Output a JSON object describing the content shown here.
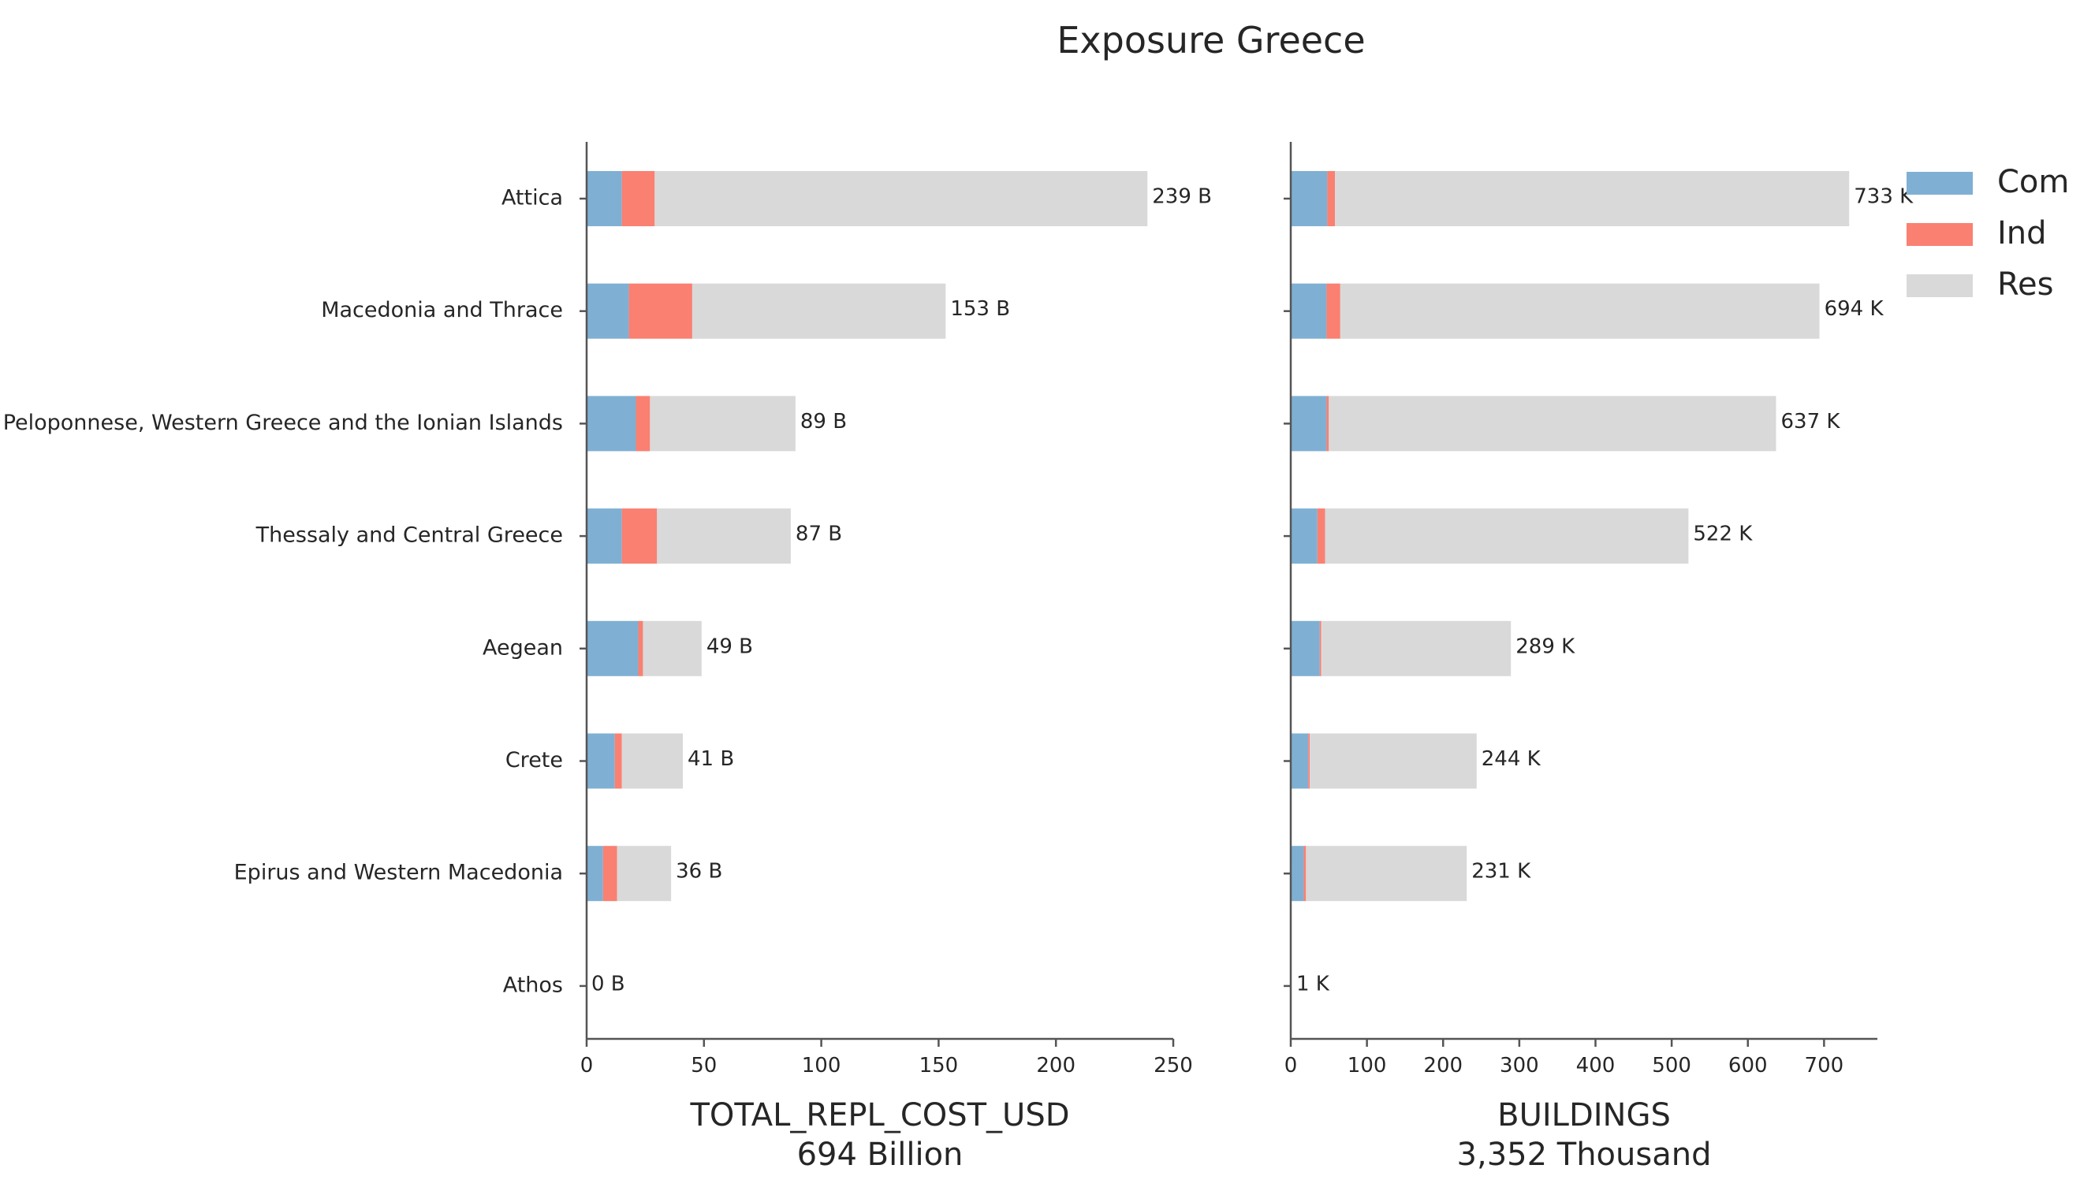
{
  "chart_data": {
    "type": "bar",
    "title": "Exposure Greece",
    "categories": [
      "Attica",
      "Macedonia and Thrace",
      "Peloponnese, Western Greece and the Ionian Islands",
      "Thessaly and Central Greece",
      "Aegean",
      "Crete",
      "Epirus and Western Macedonia",
      "Athos"
    ],
    "legend": {
      "placement": "top-right",
      "entries": [
        "Com",
        "Ind",
        "Res"
      ]
    },
    "colors": {
      "Com": "#7fb0d3",
      "Ind": "#fa8072",
      "Res": "#d9d9d9"
    },
    "panels": [
      {
        "xlabel": "TOTAL_REPL_COST_USD",
        "subtitle": "694 Billion",
        "xlim": [
          0,
          250
        ],
        "xticks": [
          "0",
          "50",
          "100",
          "150",
          "200",
          "250"
        ],
        "xtick_values": [
          0,
          50,
          100,
          150,
          200,
          250
        ],
        "series": [
          {
            "name": "Com",
            "values": [
              15,
              18,
              21,
              15,
              22,
              12,
              7,
              0
            ]
          },
          {
            "name": "Ind",
            "values": [
              14,
              27,
              6,
              15,
              2,
              3,
              6,
              0
            ]
          },
          {
            "name": "Res",
            "values": [
              210,
              108,
              62,
              57,
              25,
              26,
              23,
              0
            ]
          }
        ],
        "totals": [
          239,
          153,
          89,
          87,
          49,
          41,
          36,
          0
        ],
        "data_labels": [
          "239 B",
          "153 B",
          "89 B",
          "87 B",
          "49 B",
          "41 B",
          "36 B",
          "0 B"
        ]
      },
      {
        "xlabel": "BUILDINGS",
        "subtitle": "3,352 Thousand",
        "xlim": [
          0,
          770
        ],
        "xticks": [
          "0",
          "100",
          "200",
          "300",
          "400",
          "500",
          "600",
          "700"
        ],
        "xtick_values": [
          0,
          100,
          200,
          300,
          400,
          500,
          600,
          700
        ],
        "series": [
          {
            "name": "Com",
            "values": [
              48,
              47,
              47,
              35,
              38,
              23,
              17,
              0
            ]
          },
          {
            "name": "Ind",
            "values": [
              10,
              18,
              3,
              10,
              2,
              2,
              3,
              0
            ]
          },
          {
            "name": "Res",
            "values": [
              675,
              629,
              587,
              477,
              249,
              219,
              211,
              1
            ]
          }
        ],
        "totals": [
          733,
          694,
          637,
          522,
          289,
          244,
          231,
          1
        ],
        "data_labels": [
          "733 K",
          "694 K",
          "637 K",
          "522 K",
          "289 K",
          "244 K",
          "231 K",
          "1 K"
        ]
      }
    ]
  }
}
